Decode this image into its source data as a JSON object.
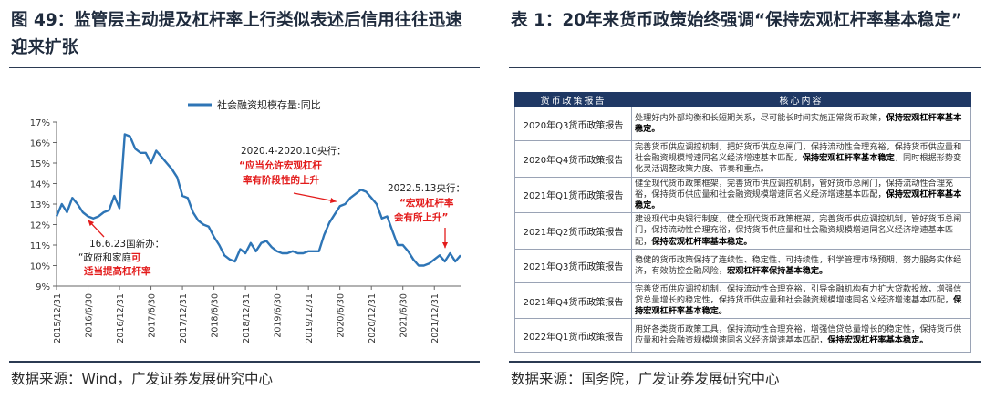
{
  "left_panel": {
    "title": "图 49：监管层主动提及杠杆率上行类似表述后信用往往迅速迎来扩张",
    "source": "数据来源：Wind，广发证券发展研究中心"
  },
  "right_panel": {
    "title": "表 1：20年来货币政策始终强调“保持宏观杠杆率基本稳定”",
    "source": "数据来源：国务院，广发证券发展研究中心"
  },
  "chart_data": {
    "type": "line",
    "title": "",
    "legend": "社会融资规模存量:同比",
    "legend_placement": "top",
    "series_color": "#2e75b6",
    "ylim": [
      9,
      17
    ],
    "y_ticks": [
      "9%",
      "10%",
      "11%",
      "12%",
      "13%",
      "14%",
      "15%",
      "16%",
      "17%"
    ],
    "x_ticks": [
      "2015/12/31",
      "2016/6/30",
      "2016/12/31",
      "2017/6/30",
      "2017/12/31",
      "2018/6/30",
      "2018/12/31",
      "2019/6/30",
      "2019/12/31",
      "2020/6/30",
      "2020/12/31",
      "2021/6/30",
      "2021/12/31"
    ],
    "grid": false,
    "series": [
      {
        "name": "社会融资规模存量:同比",
        "x": [
          "2015-12",
          "2016-01",
          "2016-02",
          "2016-03",
          "2016-04",
          "2016-05",
          "2016-06",
          "2016-07",
          "2016-08",
          "2016-09",
          "2016-10",
          "2016-11",
          "2016-12",
          "2017-01",
          "2017-02",
          "2017-03",
          "2017-04",
          "2017-05",
          "2017-06",
          "2017-07",
          "2017-08",
          "2017-09",
          "2017-10",
          "2017-11",
          "2017-12",
          "2018-01",
          "2018-02",
          "2018-03",
          "2018-04",
          "2018-05",
          "2018-06",
          "2018-07",
          "2018-08",
          "2018-09",
          "2018-10",
          "2018-11",
          "2018-12",
          "2019-01",
          "2019-02",
          "2019-03",
          "2019-04",
          "2019-05",
          "2019-06",
          "2019-07",
          "2019-08",
          "2019-09",
          "2019-10",
          "2019-11",
          "2019-12",
          "2020-01",
          "2020-02",
          "2020-03",
          "2020-04",
          "2020-05",
          "2020-06",
          "2020-07",
          "2020-08",
          "2020-09",
          "2020-10",
          "2020-11",
          "2020-12",
          "2021-01",
          "2021-02",
          "2021-03",
          "2021-04",
          "2021-05",
          "2021-06",
          "2021-07",
          "2021-08",
          "2021-09",
          "2021-10",
          "2021-11",
          "2021-12",
          "2022-01",
          "2022-02",
          "2022-03",
          "2022-04",
          "2022-05"
        ],
        "values": [
          12.4,
          13.0,
          12.6,
          13.3,
          13.0,
          12.6,
          12.4,
          12.3,
          12.4,
          12.6,
          12.7,
          13.4,
          12.8,
          16.4,
          16.3,
          15.7,
          15.5,
          15.5,
          15.0,
          15.6,
          15.3,
          15.0,
          14.7,
          14.3,
          13.4,
          13.3,
          12.6,
          12.2,
          12.0,
          11.9,
          11.4,
          11.0,
          10.5,
          10.3,
          10.2,
          10.8,
          10.6,
          11.1,
          10.7,
          11.1,
          11.2,
          10.9,
          10.7,
          10.6,
          10.6,
          10.7,
          10.6,
          10.6,
          10.7,
          10.7,
          10.7,
          11.5,
          12.1,
          12.5,
          12.9,
          13.0,
          13.3,
          13.5,
          13.7,
          13.6,
          13.3,
          13.0,
          12.3,
          12.4,
          11.7,
          11.0,
          11.0,
          10.7,
          10.3,
          10.0,
          10.0,
          10.1,
          10.3,
          10.5,
          10.2,
          10.6,
          10.2,
          10.5
        ]
      }
    ],
    "annotations": [
      {
        "id": "a1",
        "date_label": "16.6.23国新办：",
        "quote": "“政府和家庭",
        "quote_red": "可",
        "line2": "适当提高杠杆率",
        "point": "2016-06"
      },
      {
        "id": "a2",
        "date_label": "2020.4-2020.10央行：",
        "line1": "“应当允许宏观杠杆",
        "line2": "率有阶段性的上升",
        "point": "2020-06"
      },
      {
        "id": "a3",
        "date_label": "2022.5.13央行：",
        "line1": "“宏观杠杆率",
        "line2": "会有所上升”",
        "point": "2022-05"
      }
    ]
  },
  "table": {
    "headers": [
      "货币政策报告",
      "核心内容"
    ],
    "rows": [
      {
        "name": "2020年Q3货币政策报告",
        "text": "处理好内外部均衡和长短期关系，尽可能长时间实施正常货币政策，",
        "bold": "保持宏观杠杆率基本稳定。"
      },
      {
        "name": "2020年Q4货币政策报告",
        "text": "完善货币供应调控机制，把好货币供应总闸门，保持流动性合理充裕，保持货币供应量和社会融资规模增速同名义经济增速基本匹配，",
        "bold": "保持宏观杠杆率基本稳定",
        "tail": "，同时根据形势变化灵活调整政策力度、节奏和重点。"
      },
      {
        "name": "2021年Q1货币政策报告",
        "text": "健全现代货币政策框架，完善货币供应调控机制，管好货币总闸门，保持流动性合理充裕，保持货币供应量和社会融资规模增速同名义经济增速基本匹配，",
        "bold": "保持宏观杠杆率基本稳定。"
      },
      {
        "name": "2021年Q2货币政策报告",
        "text": "建设现代中央银行制度，健全现代货币政策框架，完善货币供应调控机制，管好货币总闸门，保持流动性合理充裕，保持货币供应量和社会融资规模增速同名义经济增速基本匹配，",
        "bold": "保持宏观杠杆率基本稳定。"
      },
      {
        "name": "2021年Q3货币政策报告",
        "text": "稳健的货币政策保持了连续性、稳定性、可持续性，科学管理市场预期，努力服务实体经济，有效防控金融风险，",
        "bold": "宏观杠杆率保持基本稳定。"
      },
      {
        "name": "2021年Q4货币政策报告",
        "text": "完善货币供应调控机制，保持流动性合理充裕，引导金融机构有力扩大贷款投放，增强信贷总量增长的稳定性，保持货币供应量和社会融资规模增速同名义经济增速基本匹配，",
        "bold": "保持宏观杠杆率基本稳定。"
      },
      {
        "name": "2022年Q1货币政策报告",
        "text": "用好各类货币政策工具，保持流动性合理充裕，增强信贷总量增长的稳定性，保持货币供应量和社会融资规模增速同名义经济增速基本匹配，",
        "bold": "保持宏观杠杆率基本稳定。"
      }
    ]
  }
}
